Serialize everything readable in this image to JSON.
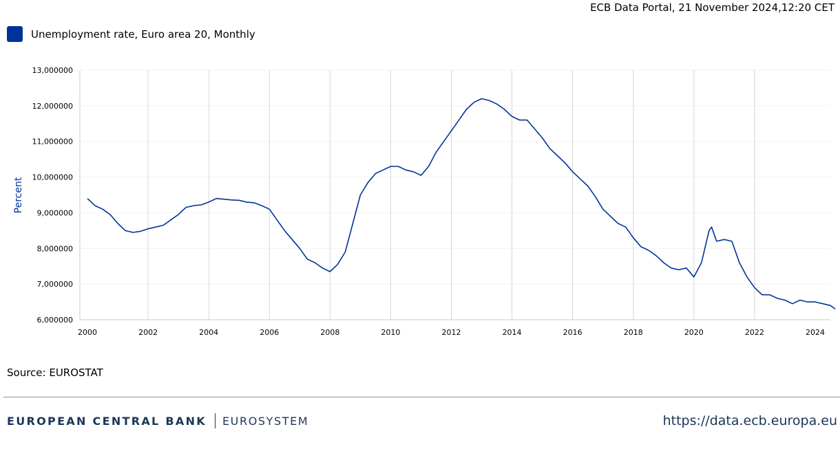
{
  "header": {
    "portal_line": "ECB Data Portal, 21 November 2024,12:20 CET"
  },
  "legend": {
    "label": "Unemployment rate, Euro area 20, Monthly"
  },
  "source_line": "Source: EUROSTAT",
  "footer": {
    "bank_name": "EUROPEAN CENTRAL BANK",
    "bank_system": "EUROSYSTEM",
    "url": "https://data.ecb.europa.eu"
  },
  "colors": {
    "series": "#003299",
    "axis_text": "#000000",
    "vgrid": "#d6d6d6",
    "hgrid": "#f2f2f2",
    "footer_text": "#1c3557",
    "ylabel": "#003299"
  },
  "chart_data": {
    "type": "line",
    "title": "",
    "xlabel": "",
    "ylabel": "Percent",
    "ylim": [
      6,
      13
    ],
    "yticks": [
      "6,000000",
      "7,000000",
      "8,000000",
      "9,000000",
      "10,000000",
      "11,000000",
      "12,000000",
      "13,000000"
    ],
    "xticks": [
      "2000",
      "2002",
      "2004",
      "2006",
      "2008",
      "2010",
      "2012",
      "2014",
      "2016",
      "2018",
      "2020",
      "2022",
      "2024"
    ],
    "grid": "vertical lines at year ticks",
    "legend_position": "top-left",
    "series": [
      {
        "name": "Unemployment rate, Euro area 20, Monthly",
        "x": [
          "2000-01",
          "2000-04",
          "2000-07",
          "2000-10",
          "2001-01",
          "2001-04",
          "2001-07",
          "2001-10",
          "2002-01",
          "2002-04",
          "2002-07",
          "2002-10",
          "2003-01",
          "2003-04",
          "2003-07",
          "2003-10",
          "2004-01",
          "2004-04",
          "2004-07",
          "2004-10",
          "2005-01",
          "2005-04",
          "2005-07",
          "2005-10",
          "2006-01",
          "2006-04",
          "2006-07",
          "2006-10",
          "2007-01",
          "2007-04",
          "2007-07",
          "2007-10",
          "2008-01",
          "2008-04",
          "2008-07",
          "2008-10",
          "2009-01",
          "2009-04",
          "2009-07",
          "2009-10",
          "2010-01",
          "2010-04",
          "2010-07",
          "2010-10",
          "2011-01",
          "2011-04",
          "2011-07",
          "2011-10",
          "2012-01",
          "2012-04",
          "2012-07",
          "2012-10",
          "2013-01",
          "2013-04",
          "2013-07",
          "2013-10",
          "2014-01",
          "2014-04",
          "2014-07",
          "2014-10",
          "2015-01",
          "2015-04",
          "2015-07",
          "2015-10",
          "2016-01",
          "2016-04",
          "2016-07",
          "2016-10",
          "2017-01",
          "2017-04",
          "2017-07",
          "2017-10",
          "2018-01",
          "2018-04",
          "2018-07",
          "2018-10",
          "2019-01",
          "2019-04",
          "2019-07",
          "2019-10",
          "2020-01",
          "2020-04",
          "2020-07",
          "2020-08",
          "2020-10",
          "2021-01",
          "2021-04",
          "2021-07",
          "2021-10",
          "2022-01",
          "2022-04",
          "2022-07",
          "2022-10",
          "2023-01",
          "2023-04",
          "2023-07",
          "2023-10",
          "2024-01",
          "2024-04",
          "2024-07",
          "2024-09"
        ],
        "values": [
          9.4,
          9.2,
          9.1,
          8.95,
          8.7,
          8.5,
          8.45,
          8.48,
          8.55,
          8.6,
          8.65,
          8.8,
          8.95,
          9.15,
          9.2,
          9.22,
          9.3,
          9.4,
          9.38,
          9.36,
          9.35,
          9.3,
          9.28,
          9.2,
          9.1,
          8.8,
          8.5,
          8.25,
          8.0,
          7.7,
          7.6,
          7.45,
          7.35,
          7.55,
          7.9,
          8.7,
          9.5,
          9.85,
          10.1,
          10.2,
          10.3,
          10.3,
          10.2,
          10.15,
          10.05,
          10.3,
          10.7,
          11.0,
          11.3,
          11.6,
          11.9,
          12.1,
          12.2,
          12.15,
          12.05,
          11.9,
          11.7,
          11.6,
          11.6,
          11.35,
          11.1,
          10.8,
          10.6,
          10.4,
          10.15,
          9.95,
          9.75,
          9.45,
          9.1,
          8.9,
          8.7,
          8.6,
          8.3,
          8.05,
          7.95,
          7.8,
          7.6,
          7.45,
          7.4,
          7.45,
          7.2,
          7.6,
          8.5,
          8.6,
          8.2,
          8.25,
          8.2,
          7.6,
          7.2,
          6.9,
          6.7,
          6.7,
          6.6,
          6.55,
          6.45,
          6.55,
          6.5,
          6.5,
          6.45,
          6.4,
          6.3
        ]
      }
    ]
  }
}
